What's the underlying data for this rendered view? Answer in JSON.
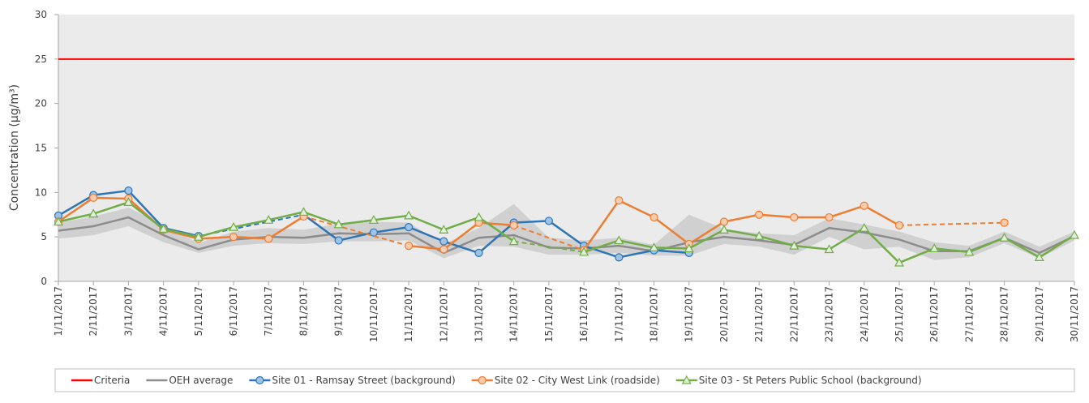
{
  "chart_data": {
    "type": "line",
    "y_label": "Concentration (µg/m³)",
    "categories": [
      "1/11/2017",
      "2/11/2017",
      "3/11/2017",
      "4/11/2017",
      "5/11/2017",
      "6/11/2017",
      "7/11/2017",
      "8/11/2017",
      "9/11/2017",
      "10/11/2017",
      "11/11/2017",
      "12/11/2017",
      "13/11/2017",
      "14/11/2017",
      "15/11/2017",
      "16/11/2017",
      "17/11/2017",
      "18/11/2017",
      "19/11/2017",
      "20/11/2017",
      "21/11/2017",
      "22/11/2017",
      "23/11/2017",
      "24/11/2017",
      "25/11/2017",
      "26/11/2017",
      "27/11/2017",
      "28/11/2017",
      "29/11/2017",
      "30/11/2017"
    ],
    "ylim": [
      0,
      30
    ],
    "yticks": [
      0,
      5,
      10,
      15,
      20,
      25,
      30
    ],
    "criteria": {
      "name": "Criteria",
      "color": "#ff0000",
      "value": 25
    },
    "band_color": "#d0d0d0",
    "band_lower": [
      4.8,
      5.2,
      6.2,
      4.4,
      3.2,
      4.0,
      4.3,
      4.2,
      4.5,
      4.5,
      4.6,
      2.6,
      4.0,
      3.9,
      3.0,
      3.0,
      3.2,
      2.9,
      2.9,
      4.2,
      3.9,
      3.0,
      5.0,
      3.6,
      3.9,
      2.4,
      2.7,
      4.3,
      2.6,
      4.6
    ],
    "band_upper": [
      6.6,
      7.3,
      8.3,
      6.3,
      4.3,
      5.6,
      6.0,
      5.8,
      6.5,
      6.7,
      6.6,
      4.2,
      6.0,
      8.7,
      4.9,
      4.6,
      4.9,
      4.1,
      7.5,
      5.9,
      5.4,
      5.2,
      7.1,
      6.4,
      5.6,
      4.4,
      4.0,
      5.6,
      3.9,
      5.6
    ],
    "series": [
      {
        "name": "OEH average",
        "color": "#8c8c8c",
        "values": [
          5.7,
          6.2,
          7.2,
          5.2,
          3.6,
          4.7,
          5.0,
          4.9,
          5.4,
          5.3,
          5.4,
          3.2,
          4.9,
          5.2,
          3.8,
          3.7,
          4.0,
          3.4,
          4.4,
          5.0,
          4.6,
          4.1,
          6.0,
          5.5,
          4.7,
          3.4,
          3.4,
          4.9,
          3.2,
          5.1
        ]
      },
      {
        "name": "Site 01 - Ramsay Street (background)",
        "color": "#2e75b6",
        "marker_fill": "#9dc3e6",
        "marker": "circle",
        "values": [
          7.4,
          9.7,
          10.2,
          6.0,
          5.1,
          null,
          null,
          7.5,
          4.6,
          5.5,
          6.1,
          4.5,
          3.2,
          6.6,
          6.8,
          4.0,
          2.7,
          3.5,
          3.2,
          null,
          null,
          null,
          null,
          null,
          null,
          null,
          null,
          null,
          null,
          null
        ]
      },
      {
        "name": "Site 02 - City West Link (roadside)",
        "color": "#ed7d31",
        "marker_fill": "#f8cbad",
        "marker": "circle",
        "values": [
          6.7,
          9.4,
          9.3,
          5.8,
          4.8,
          5.0,
          4.8,
          7.3,
          null,
          null,
          4.0,
          3.6,
          6.6,
          6.3,
          null,
          3.5,
          9.1,
          7.2,
          4.2,
          6.7,
          7.5,
          7.2,
          7.2,
          8.5,
          6.3,
          null,
          null,
          6.6,
          null,
          null
        ]
      },
      {
        "name": "Site 03 - St Peters Public School (background)",
        "color": "#70ad47",
        "marker_fill": "#e2efda",
        "marker": "triangle",
        "values": [
          6.7,
          7.6,
          8.9,
          5.9,
          5.0,
          6.1,
          6.9,
          7.8,
          6.4,
          6.9,
          7.4,
          5.8,
          7.2,
          4.5,
          null,
          3.3,
          4.6,
          3.8,
          3.7,
          5.8,
          5.1,
          4.0,
          3.6,
          6.0,
          2.1,
          3.7,
          3.3,
          4.9,
          2.7,
          5.2
        ]
      }
    ]
  }
}
